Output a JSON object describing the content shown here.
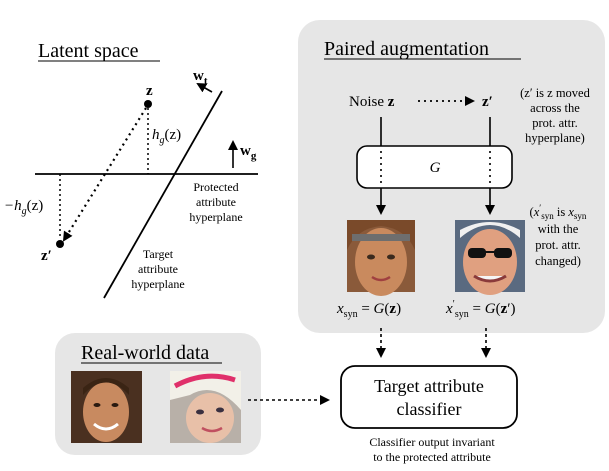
{
  "latent": {
    "title": "Latent space",
    "z_label": "z",
    "zprime_label": "z′",
    "wt_label": "w",
    "wt_sub": "t",
    "wg_label": "w",
    "wg_sub": "g",
    "hg_label": "h",
    "hg_sub": "g",
    "hg_arg": "(z)",
    "neg_hg_prefix": "−h",
    "protected_line1": "Protected",
    "protected_line2": "attribute",
    "protected_line3": "hyperplane",
    "target_line1": "Target",
    "target_line2": "attribute",
    "target_line3": "hyperplane"
  },
  "paired": {
    "title": "Paired augmentation",
    "noise_label": "Noise",
    "noise_var": "z",
    "zprime": "z′",
    "note1_line1": "(z′ is z moved",
    "note1_line2": "across the",
    "note1_line3": "prot. attr.",
    "note1_line4": "hyperplane)",
    "generator": "G",
    "note2_line1": "(x′syn is xsyn",
    "note2_line2": "with the",
    "note2_line3": "prot. attr.",
    "note2_line4": "changed)",
    "xsyn_eq": "xsyn = G(z)",
    "xsyn_prime_eq": "x′syn = G(z′)"
  },
  "realworld": {
    "title": "Real-world data"
  },
  "classifier": {
    "line1": "Target attribute",
    "line2": "classifier",
    "caption1": "Classifier output invariant",
    "caption2": "to the protected attribute"
  },
  "colors": {
    "panel_bg": "#e6e6e6",
    "stroke": "#000000"
  }
}
